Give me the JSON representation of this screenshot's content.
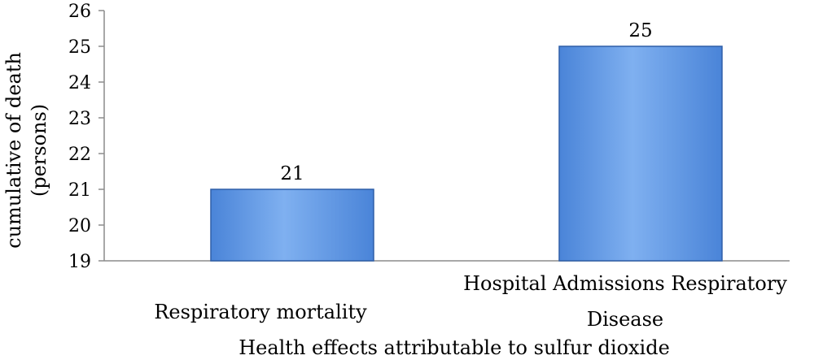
{
  "chart_data": {
    "type": "bar",
    "categories": [
      [
        "Respiratory mortality"
      ],
      [
        "Hospital Admissions Respiratory",
        "Disease"
      ]
    ],
    "values": [
      21,
      25
    ],
    "data_labels": [
      "21",
      "25"
    ],
    "ylabel": [
      "cumulative of death",
      "(persons)"
    ],
    "xlabel": "Health effects attributable to sulfur dioxide",
    "ylim": [
      19,
      26
    ],
    "yticks": [
      "19",
      "20",
      "21",
      "22",
      "23",
      "24",
      "25",
      "26"
    ],
    "bar_color": "#4a84d8",
    "bar_color_light": "#7fb0f0",
    "bar_edge_color": "#2f5fa8",
    "grid": false,
    "legend": "none"
  }
}
